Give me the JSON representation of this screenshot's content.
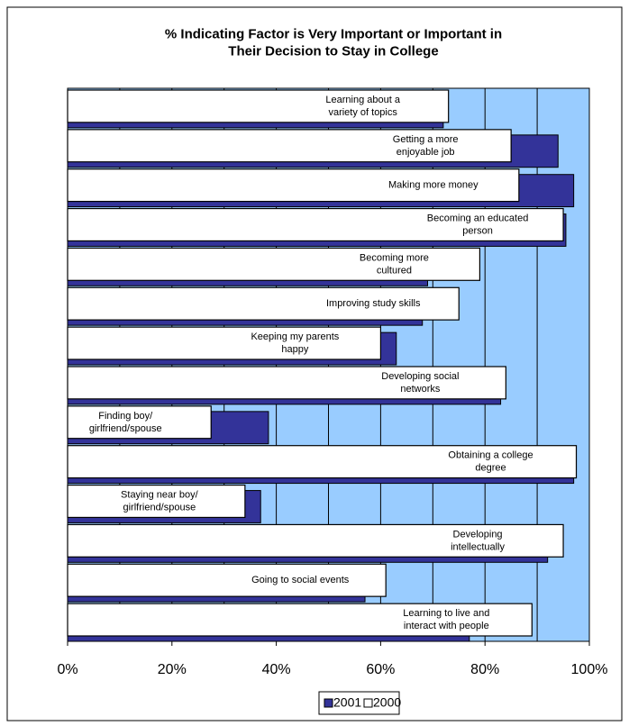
{
  "chart_data": {
    "type": "bar",
    "orientation": "horizontal",
    "title": "% Indicating Factor is Very Important or Important in\nTheir Decision to Stay in College",
    "categories": [
      "Learning about a\nvariety of topics",
      "Getting a more\nenjoyable job",
      "Making more money",
      "Becoming an educated\nperson",
      "Becoming more\ncultured",
      "Improving study skills",
      "Keeping my parents\nhappy",
      "Developing social\nnetworks",
      "Finding boy/\ngirlfriend/spouse",
      "Obtaining a  college\ndegree",
      "Staying near boy/\ngirlfriend/spouse",
      "Developing\nintellectually",
      "Going to social events",
      "Learning to live and\ninteract with people"
    ],
    "series": [
      {
        "name": "2001",
        "color": "#333399",
        "values": [
          72,
          94,
          97,
          95.5,
          69,
          68,
          63,
          83,
          38.5,
          97,
          37,
          92,
          57,
          77
        ]
      },
      {
        "name": "2000",
        "color": "#ffffff",
        "values": [
          73,
          85,
          86.5,
          95,
          79,
          75,
          60,
          84,
          27.5,
          97.5,
          34,
          95,
          61,
          89
        ]
      }
    ],
    "xlim": [
      0,
      100
    ],
    "xticks": [
      {
        "value": 0,
        "label": "0%"
      },
      {
        "value": 20,
        "label": "20%"
      },
      {
        "value": 40,
        "label": "40%"
      },
      {
        "value": 60,
        "label": "60%"
      },
      {
        "value": 80,
        "label": "80%"
      },
      {
        "value": 100,
        "label": "100%"
      }
    ],
    "minor_xticks": [
      10,
      30,
      50,
      70,
      90
    ],
    "grid": true,
    "plot_background": "#99ccff",
    "legend": "bottom"
  }
}
